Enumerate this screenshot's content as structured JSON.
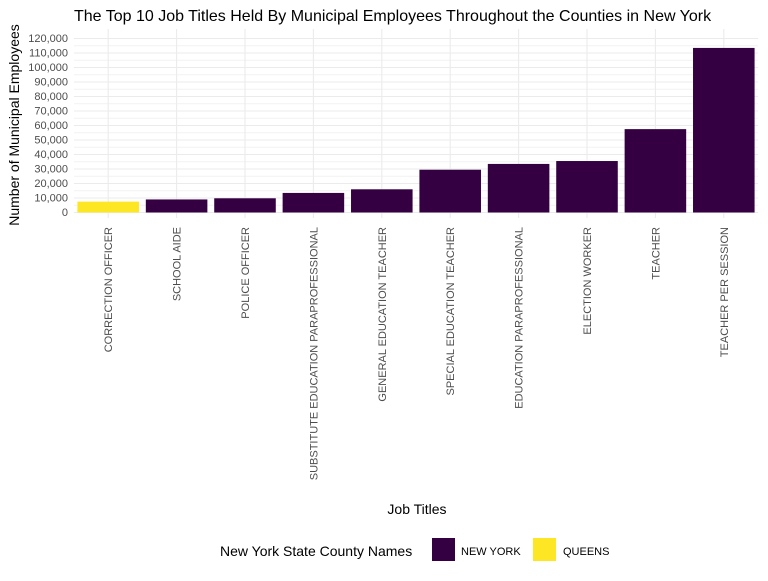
{
  "chart_data": {
    "type": "bar",
    "title": "The Top 10 Job Titles Held By Municipal Employees Throughout the Counties in New York",
    "xlabel": "Job Titles",
    "ylabel": "Number of Municipal Employees",
    "categories": [
      "CORRECTION OFFICER",
      "SCHOOL AIDE",
      "POLICE OFFICER",
      "SUBSTITUTE EDUCATION PARAPROFESSIONAL",
      "GENERAL EDUCATION TEACHER",
      "SPECIAL EDUCATION TEACHER",
      "EDUCATION PARAPROFESSIONAL",
      "ELECTION WORKER",
      "TEACHER",
      "TEACHER PER SESSION"
    ],
    "values": [
      7500,
      9000,
      9800,
      13500,
      16000,
      29500,
      33500,
      35500,
      57500,
      113500
    ],
    "counties": [
      "QUEENS",
      "NEW YORK",
      "NEW YORK",
      "NEW YORK",
      "NEW YORK",
      "NEW YORK",
      "NEW YORK",
      "NEW YORK",
      "NEW YORK",
      "NEW YORK"
    ],
    "ylim": [
      0,
      120000
    ],
    "yticks": [
      0,
      10000,
      20000,
      30000,
      40000,
      50000,
      60000,
      70000,
      80000,
      90000,
      100000,
      110000,
      120000
    ],
    "ytick_labels": [
      "0",
      "10,000",
      "20,000",
      "30,000",
      "40,000",
      "50,000",
      "60,000",
      "70,000",
      "80,000",
      "90,000",
      "100,000",
      "110,000",
      "120,000"
    ],
    "grid": true,
    "legend": {
      "title": "New York State County Names",
      "placement": "bottom",
      "entries": [
        {
          "name": "NEW YORK",
          "color": "#340042"
        },
        {
          "name": "QUEENS",
          "color": "#fde725"
        }
      ]
    }
  }
}
